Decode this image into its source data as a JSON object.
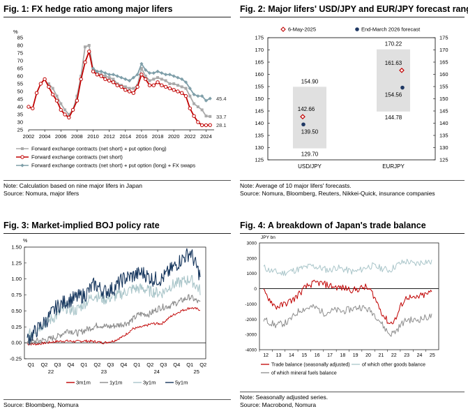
{
  "colors": {
    "grey": "#aaaaaa",
    "red": "#c00000",
    "teal": "#7f9fa9",
    "lightgrey": "#cfcfcf",
    "navy": "#1f3864",
    "sky": "#a9c5c9",
    "midgrey": "#8c8c8c",
    "darknavy": "#17375e",
    "band": "#e0e0e0"
  },
  "fig1": {
    "title": "Fig. 1: FX hedge ratio among major lifers",
    "unit": "%",
    "note": "Note: Calculation based on nine major lifers in Japan",
    "source": "Source: Nomura, major lifers",
    "legend": [
      "Forward exchange contracts (net short) +  put option (long)",
      "Forward exchange contracts (net short)",
      "Forward exchange contracts (net short) +  put option (long) + FX swaps"
    ],
    "end_labels": [
      "33.7",
      "28.1",
      "45.4"
    ]
  },
  "fig2": {
    "title": "Fig. 2: Major lifers' USD/JPY and EUR/JPY forecast range",
    "note": "Note: Average of 10 major lifers' forecasts.",
    "source": "Source: Nomura, Bloomberg, Reuters, Nikkei-Quick, insurance companies",
    "legend": [
      "6-May-2025",
      "End-March 2026 forecast"
    ],
    "labels": {
      "usd_high": "154.90",
      "usd_low": "129.70",
      "usd_spot": "142.66",
      "usd_fc": "139.50",
      "eur_high": "170.22",
      "eur_low": "144.78",
      "eur_spot": "161.63",
      "eur_fc": "154.56"
    }
  },
  "fig3": {
    "title": "Fig. 3: Market-implied BOJ policy rate",
    "unit": "%",
    "source": "Source: Bloomberg, Nomura",
    "legend": [
      "3m1m",
      "1y1m",
      "3y1m",
      "5y1m"
    ]
  },
  "fig4": {
    "title": "Fig. 4: A breakdown of Japan's trade balance",
    "unit": "JPY bn",
    "note": "Note: Seasonally adjusted series.",
    "source": "Source: Macrobond, Nomura",
    "legend": [
      "Trade balance (seasonally adjusted)",
      "of which other goods balance",
      "of which mineral fuels balance"
    ]
  },
  "chart_data": [
    {
      "type": "line",
      "title": "Fig. 1: FX hedge ratio among major lifers",
      "ylabel": "%",
      "ylim": [
        25,
        85
      ],
      "yticks": [
        25,
        30,
        35,
        40,
        45,
        50,
        55,
        60,
        65,
        70,
        75,
        80,
        85
      ],
      "xticks": [
        "2002",
        "2004",
        "2006",
        "2008",
        "2010",
        "2012",
        "2014",
        "2016",
        "2018",
        "2020",
        "2022",
        "2024"
      ],
      "x": [
        2002,
        2002.5,
        2003,
        2003.5,
        2004,
        2004.5,
        2005,
        2005.5,
        2006,
        2006.5,
        2007,
        2007.5,
        2008,
        2008.5,
        2009,
        2009.5,
        2010,
        2010.5,
        2011,
        2011.5,
        2012,
        2012.5,
        2013,
        2013.5,
        2014,
        2014.5,
        2015,
        2015.5,
        2016,
        2016.5,
        2017,
        2017.5,
        2018,
        2018.5,
        2019,
        2019.5,
        2020,
        2020.5,
        2021,
        2021.5,
        2022,
        2022.5,
        2023,
        2023.5,
        2024,
        2024.5
      ],
      "series": [
        {
          "name": "Forward exchange contracts (net short) +  put option (long)",
          "values": [
            null,
            null,
            null,
            null,
            null,
            55,
            52,
            47,
            42,
            38,
            35,
            38,
            47,
            60,
            79,
            80,
            64,
            62,
            61,
            60,
            59,
            58,
            55,
            54,
            53,
            52,
            52,
            54,
            65,
            60,
            57,
            58,
            59,
            58,
            57,
            55,
            55,
            54,
            53,
            52,
            47,
            42,
            40,
            38,
            34,
            33.7
          ]
        },
        {
          "name": "Forward exchange contracts (net short)",
          "values": [
            40,
            39,
            49,
            55,
            58,
            53,
            48,
            44,
            38,
            35,
            33,
            38,
            44,
            58,
            69,
            76,
            63,
            61,
            60,
            58,
            57,
            56,
            54,
            53,
            51,
            50,
            49,
            53,
            61,
            58,
            54,
            54,
            56,
            54,
            53,
            52,
            51,
            50,
            49,
            47,
            39,
            34,
            30,
            28,
            28,
            28.1
          ]
        },
        {
          "name": "Forward exchange contracts (net short) +  put option (long) + FX swaps",
          "values": [
            null,
            null,
            null,
            null,
            null,
            null,
            null,
            null,
            null,
            null,
            null,
            null,
            null,
            null,
            null,
            null,
            65,
            63,
            63,
            62,
            61,
            61,
            60,
            59,
            58,
            57,
            59,
            61,
            68,
            64,
            62,
            62,
            63,
            62,
            61,
            61,
            60,
            59,
            58,
            56,
            52,
            48,
            47,
            47,
            44,
            45.4
          ]
        }
      ]
    },
    {
      "type": "range",
      "title": "Fig. 2: Major lifers' USD/JPY and EUR/JPY forecast range",
      "ylim": [
        125,
        175
      ],
      "yticks": [
        125,
        130,
        135,
        140,
        145,
        150,
        155,
        160,
        165,
        170,
        175
      ],
      "categories": [
        "USD/JPY",
        "EURJPY"
      ],
      "range_low": [
        129.7,
        144.78
      ],
      "range_high": [
        154.9,
        170.22
      ],
      "series": [
        {
          "name": "6-May-2025",
          "values": [
            142.66,
            161.63
          ]
        },
        {
          "name": "End-March 2026 forecast",
          "values": [
            139.5,
            154.56
          ]
        }
      ]
    },
    {
      "type": "line",
      "title": "Fig. 3: Market-implied BOJ policy rate",
      "ylabel": "%",
      "ylim": [
        -0.25,
        1.5
      ],
      "yticks": [
        -0.25,
        0.0,
        0.25,
        0.5,
        0.75,
        1.0,
        1.25,
        1.5
      ],
      "xticks": [
        "Q1",
        "Q2",
        "Q3",
        "Q4",
        "Q1",
        "Q2",
        "Q3",
        "Q4",
        "Q1",
        "Q2",
        "Q3",
        "Q4",
        "Q1",
        "Q2"
      ],
      "years": [
        "22",
        "23",
        "24",
        "25"
      ],
      "series": [
        {
          "name": "3m1m",
          "values": [
            -0.02,
            -0.02,
            0.0,
            0.02,
            0.03,
            0.02,
            0.03,
            0.02,
            0.0,
            0.03,
            0.1,
            0.22,
            0.25,
            0.3,
            0.3,
            0.42,
            0.5,
            0.55,
            0.52
          ]
        },
        {
          "name": "1y1m",
          "values": [
            0.0,
            0.03,
            0.05,
            0.1,
            0.2,
            0.15,
            0.22,
            0.28,
            0.25,
            0.28,
            0.32,
            0.45,
            0.45,
            0.55,
            0.58,
            0.65,
            0.72,
            0.62
          ]
        },
        {
          "name": "3y1m",
          "values": [
            0.1,
            0.22,
            0.32,
            0.42,
            0.55,
            0.5,
            0.62,
            0.75,
            0.68,
            0.72,
            0.78,
            0.85,
            0.85,
            0.8,
            0.78,
            0.9,
            0.95,
            1.0,
            0.82
          ]
        },
        {
          "name": "5y1m",
          "values": [
            0.05,
            0.2,
            0.35,
            0.55,
            0.65,
            0.7,
            0.75,
            0.92,
            0.8,
            0.85,
            1.0,
            1.05,
            1.1,
            1.0,
            1.0,
            1.15,
            1.3,
            1.42,
            1.05
          ]
        }
      ]
    },
    {
      "type": "line",
      "title": "Fig. 4: A breakdown of Japan's trade balance",
      "ylabel": "JPY bn",
      "ylim": [
        -4000,
        3000
      ],
      "yticks": [
        -4000,
        -3000,
        -2000,
        -1000,
        0,
        1000,
        2000,
        3000
      ],
      "xticks": [
        "12",
        "13",
        "14",
        "15",
        "16",
        "17",
        "18",
        "19",
        "20",
        "21",
        "22",
        "23",
        "24",
        "25"
      ],
      "series": [
        {
          "name": "Trade balance (seasonally adjusted)",
          "values": [
            -200,
            -700,
            -1200,
            -1100,
            -900,
            -700,
            -300,
            100,
            300,
            400,
            300,
            200,
            100,
            50,
            0,
            -100,
            0,
            100,
            -200,
            -1000,
            -1800,
            -2300,
            -2000,
            -1000,
            -500,
            -700,
            -500,
            -400,
            -200
          ]
        },
        {
          "name": "of which other goods balance",
          "values": [
            1400,
            1200,
            1100,
            1000,
            1100,
            1200,
            1300,
            1400,
            1500,
            1400,
            1300,
            1200,
            1400,
            1300,
            1200,
            1100,
            1200,
            1400,
            1500,
            1400,
            1300,
            1200,
            1500,
            1700,
            1800,
            1600,
            1700,
            1800,
            1700
          ]
        },
        {
          "name": "of which mineral fuels balance",
          "values": [
            -2000,
            -2200,
            -2400,
            -2300,
            -2200,
            -1800,
            -1400,
            -1300,
            -1200,
            -1300,
            -1600,
            -1500,
            -1400,
            -1500,
            -1400,
            -1300,
            -1200,
            -1300,
            -1500,
            -1900,
            -2500,
            -3000,
            -2800,
            -2300,
            -2000,
            -2100,
            -2000,
            -1900,
            -1800
          ]
        }
      ]
    }
  ]
}
